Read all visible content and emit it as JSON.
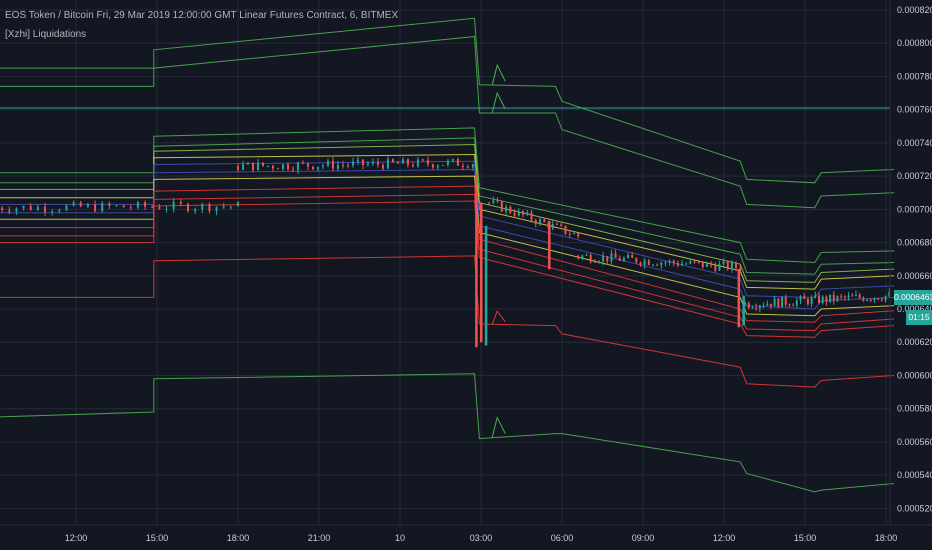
{
  "header": {
    "title": "EOS Token / Bitcoin Fri, 29 Mar 2019 12:00:00 GMT Linear Futures Contract, 6, BITMEX",
    "indicator": "[Xzhi] Liquidations"
  },
  "last_price_label": "0.0006463",
  "countdown_label": "01:15",
  "colors": {
    "background": "#131722",
    "up_candle": "#26a69a",
    "down_candle": "#ef5350",
    "band_green": "#4caf50",
    "band_lime": "#8bc34a",
    "band_yellow": "#d4d44a",
    "band_blue": "#3f51b5",
    "band_red": "#e53935",
    "level_line": "#26a69a"
  },
  "chart_data": {
    "type": "candlestick",
    "title": "EOS Token / Bitcoin Fri, 29 Mar 2019 12:00:00 GMT Linear Futures Contract, 6, BITMEX",
    "ylim": [
      0.00051,
      0.000826
    ],
    "y_ticks": [
      "0.0008200",
      "0.0008000",
      "0.0007800",
      "0.0007600",
      "0.0007400",
      "0.0007200",
      "0.0007000",
      "0.0006800",
      "0.0006600",
      "0.0006400",
      "0.0006200",
      "0.0006000",
      "0.0005800",
      "0.0005600",
      "0.0005400",
      "0.0005200"
    ],
    "x_ticks": [
      "12:00",
      "15:00",
      "18:00",
      "21:00",
      "10",
      "03:00",
      "06:00",
      "09:00",
      "12:00",
      "15:00",
      "18:00"
    ],
    "horizontal_level": 0.000761,
    "last_price": 0.0006463,
    "price_segments": [
      {
        "t": [
          0,
          15
        ],
        "p": [
          0.000701,
          0.000702
        ],
        "n": 35
      },
      {
        "t": [
          15,
          29.5
        ],
        "p": [
          0.000726,
          0.000728
        ],
        "n": 48
      },
      {
        "t": [
          30.5,
          36
        ],
        "p": [
          0.000704,
          0.000684
        ],
        "n": 22
      },
      {
        "t": [
          36,
          46
        ],
        "p": [
          0.000672,
          0.000665
        ],
        "n": 40
      },
      {
        "t": [
          46.3,
          55.2
        ],
        "p": [
          0.000643,
          0.000648
        ],
        "n": 40
      }
    ],
    "spikes": [
      {
        "t": 29.7,
        "from": 0.000722,
        "to": 0.000617,
        "dir": "down"
      },
      {
        "t": 30.0,
        "from": 0.000704,
        "to": 0.00062,
        "dir": "down"
      },
      {
        "t": 30.3,
        "from": 0.000618,
        "to": 0.00069,
        "dir": "up"
      },
      {
        "t": 34.2,
        "from": 0.000693,
        "to": 0.000664,
        "dir": "down"
      },
      {
        "t": 45.9,
        "from": 0.000664,
        "to": 0.000629,
        "dir": "down"
      },
      {
        "t": 46.2,
        "from": 0.00063,
        "to": 0.000648,
        "dir": "up"
      }
    ],
    "bands": [
      {
        "name": "upper_outer",
        "color": "#4caf50",
        "points": [
          [
            0,
            0.000785
          ],
          [
            9.8,
            0.000785
          ],
          [
            9.8,
            0.000796
          ],
          [
            29.6,
            0.000815
          ],
          [
            29.9,
            0.000775
          ],
          [
            34.6,
            0.000774
          ],
          [
            35.0,
            0.000765
          ],
          [
            46.0,
            0.000729
          ],
          [
            46.4,
            0.000718
          ],
          [
            50.6,
            0.000716
          ],
          [
            51.0,
            0.000722
          ],
          [
            55.5,
            0.000724
          ]
        ]
      },
      {
        "name": "upper_outer_b",
        "color": "#4caf50",
        "points": [
          [
            0,
            0.000774
          ],
          [
            9.8,
            0.000774
          ],
          [
            9.8,
            0.000785
          ],
          [
            29.6,
            0.000804
          ],
          [
            29.9,
            0.000758
          ],
          [
            34.6,
            0.000758
          ],
          [
            35.0,
            0.000748
          ],
          [
            46.0,
            0.000714
          ],
          [
            46.4,
            0.000703
          ],
          [
            50.6,
            0.000701
          ],
          [
            51.0,
            0.000708
          ],
          [
            55.5,
            0.00071
          ]
        ]
      },
      {
        "name": "green_1",
        "color": "#4caf50",
        "points": [
          [
            0,
            0.000722
          ],
          [
            9.8,
            0.000722
          ],
          [
            9.8,
            0.000744
          ],
          [
            29.6,
            0.000749
          ],
          [
            29.9,
            0.000713
          ],
          [
            46.0,
            0.00068
          ],
          [
            46.4,
            0.00067
          ],
          [
            50.6,
            0.000668
          ],
          [
            51.0,
            0.000674
          ],
          [
            55.5,
            0.000675
          ]
        ]
      },
      {
        "name": "green_2",
        "color": "#4caf50",
        "points": [
          [
            0,
            0.000716
          ],
          [
            9.8,
            0.000716
          ],
          [
            9.8,
            0.000738
          ],
          [
            29.6,
            0.000743
          ],
          [
            29.9,
            0.000708
          ],
          [
            46.0,
            0.000673
          ],
          [
            46.4,
            0.000662
          ],
          [
            50.6,
            0.000661
          ],
          [
            51.0,
            0.000667
          ],
          [
            55.5,
            0.000668
          ]
        ]
      },
      {
        "name": "lime",
        "color": "#8bc34a",
        "points": [
          [
            0,
            0.000712
          ],
          [
            9.8,
            0.000712
          ],
          [
            9.8,
            0.000735
          ],
          [
            29.6,
            0.000739
          ],
          [
            29.9,
            0.000704
          ],
          [
            46.0,
            0.000667
          ],
          [
            46.4,
            0.000657
          ],
          [
            50.6,
            0.000656
          ],
          [
            51.0,
            0.000662
          ],
          [
            55.5,
            0.000664
          ]
        ]
      },
      {
        "name": "yellow_up",
        "color": "#d4d44a",
        "points": [
          [
            0,
            0.000707
          ],
          [
            9.8,
            0.000707
          ],
          [
            9.8,
            0.000731
          ],
          [
            29.6,
            0.000733
          ],
          [
            29.9,
            0.0007
          ],
          [
            46.0,
            0.000663
          ],
          [
            46.4,
            0.000653
          ],
          [
            50.6,
            0.000652
          ],
          [
            51.0,
            0.000658
          ],
          [
            55.5,
            0.00066
          ]
        ]
      },
      {
        "name": "blue_up",
        "color": "#3f51b5",
        "points": [
          [
            0,
            0.000703
          ],
          [
            9.8,
            0.000703
          ],
          [
            9.8,
            0.000727
          ],
          [
            29.6,
            0.000729
          ],
          [
            29.9,
            0.000696
          ],
          [
            46.0,
            0.000658
          ],
          [
            46.4,
            0.000648
          ],
          [
            50.6,
            0.000647
          ],
          [
            51.0,
            0.000652
          ],
          [
            55.5,
            0.000654
          ]
        ]
      },
      {
        "name": "blue_down",
        "color": "#3f51b5",
        "points": [
          [
            0,
            0.000698
          ],
          [
            9.8,
            0.000698
          ],
          [
            9.8,
            0.000722
          ],
          [
            29.6,
            0.000724
          ],
          [
            29.9,
            0.00069
          ],
          [
            46.0,
            0.000652
          ],
          [
            46.4,
            0.000642
          ],
          [
            50.6,
            0.00064
          ],
          [
            51.0,
            0.000645
          ],
          [
            55.5,
            0.000647
          ]
        ]
      },
      {
        "name": "yellow_down",
        "color": "#d4d44a",
        "points": [
          [
            0,
            0.000694
          ],
          [
            9.8,
            0.000694
          ],
          [
            9.8,
            0.000718
          ],
          [
            29.6,
            0.00072
          ],
          [
            29.9,
            0.000686
          ],
          [
            46.0,
            0.000647
          ],
          [
            46.4,
            0.000637
          ],
          [
            50.6,
            0.000636
          ],
          [
            51.0,
            0.00064
          ],
          [
            55.5,
            0.000642
          ]
        ]
      },
      {
        "name": "red_1",
        "color": "#e53935",
        "points": [
          [
            0,
            0.000689
          ],
          [
            9.8,
            0.000689
          ],
          [
            9.8,
            0.000711
          ],
          [
            29.6,
            0.000714
          ],
          [
            29.9,
            0.000682
          ],
          [
            46.0,
            0.00064
          ],
          [
            46.4,
            0.000633
          ],
          [
            50.6,
            0.000632
          ],
          [
            51.0,
            0.000636
          ],
          [
            55.5,
            0.000639
          ]
        ]
      },
      {
        "name": "red_2",
        "color": "#e53935",
        "points": [
          [
            0,
            0.000684
          ],
          [
            9.8,
            0.000684
          ],
          [
            9.8,
            0.000706
          ],
          [
            29.6,
            0.000709
          ],
          [
            29.9,
            0.000676
          ],
          [
            46.0,
            0.000635
          ],
          [
            46.4,
            0.000628
          ],
          [
            50.6,
            0.000627
          ],
          [
            51.0,
            0.000631
          ],
          [
            55.5,
            0.000634
          ]
        ]
      },
      {
        "name": "red_3",
        "color": "#e53935",
        "points": [
          [
            0,
            0.00068
          ],
          [
            9.8,
            0.00068
          ],
          [
            9.8,
            0.000702
          ],
          [
            29.6,
            0.000705
          ],
          [
            29.9,
            0.000671
          ],
          [
            46.0,
            0.000631
          ],
          [
            46.4,
            0.000624
          ],
          [
            50.6,
            0.000623
          ],
          [
            51.0,
            0.000627
          ],
          [
            55.5,
            0.00063
          ]
        ]
      },
      {
        "name": "red_lower",
        "color": "#e53935",
        "points": [
          [
            0,
            0.000647
          ],
          [
            9.8,
            0.000647
          ],
          [
            9.8,
            0.000669
          ],
          [
            29.6,
            0.000672
          ],
          [
            29.9,
            0.000631
          ],
          [
            34.6,
            0.00063
          ],
          [
            35.0,
            0.000625
          ],
          [
            46.0,
            0.000605
          ],
          [
            46.4,
            0.000595
          ],
          [
            50.6,
            0.000593
          ],
          [
            51.0,
            0.000597
          ],
          [
            55.5,
            0.0006
          ]
        ]
      },
      {
        "name": "green_lower",
        "color": "#4caf50",
        "points": [
          [
            0,
            0.000575
          ],
          [
            9.8,
            0.000578
          ],
          [
            9.8,
            0.000598
          ],
          [
            29.6,
            0.000601
          ],
          [
            29.9,
            0.000562
          ],
          [
            34.6,
            0.000565
          ],
          [
            35.0,
            0.000565
          ],
          [
            46.0,
            0.000548
          ],
          [
            46.4,
            0.000541
          ],
          [
            50.6,
            0.00053
          ],
          [
            51.0,
            0.000531
          ],
          [
            55.5,
            0.000535
          ]
        ]
      }
    ],
    "band_spikes": [
      {
        "band": "upper_outer",
        "t": 31.0,
        "dy": 1.2e-05
      },
      {
        "band": "upper_outer_b",
        "t": 31.0,
        "dy": 1.2e-05
      },
      {
        "band": "green_lower",
        "t": 31.0,
        "dy": 1.2e-05
      },
      {
        "band": "red_lower",
        "t": 31.0,
        "dy": 8e-06
      }
    ]
  }
}
